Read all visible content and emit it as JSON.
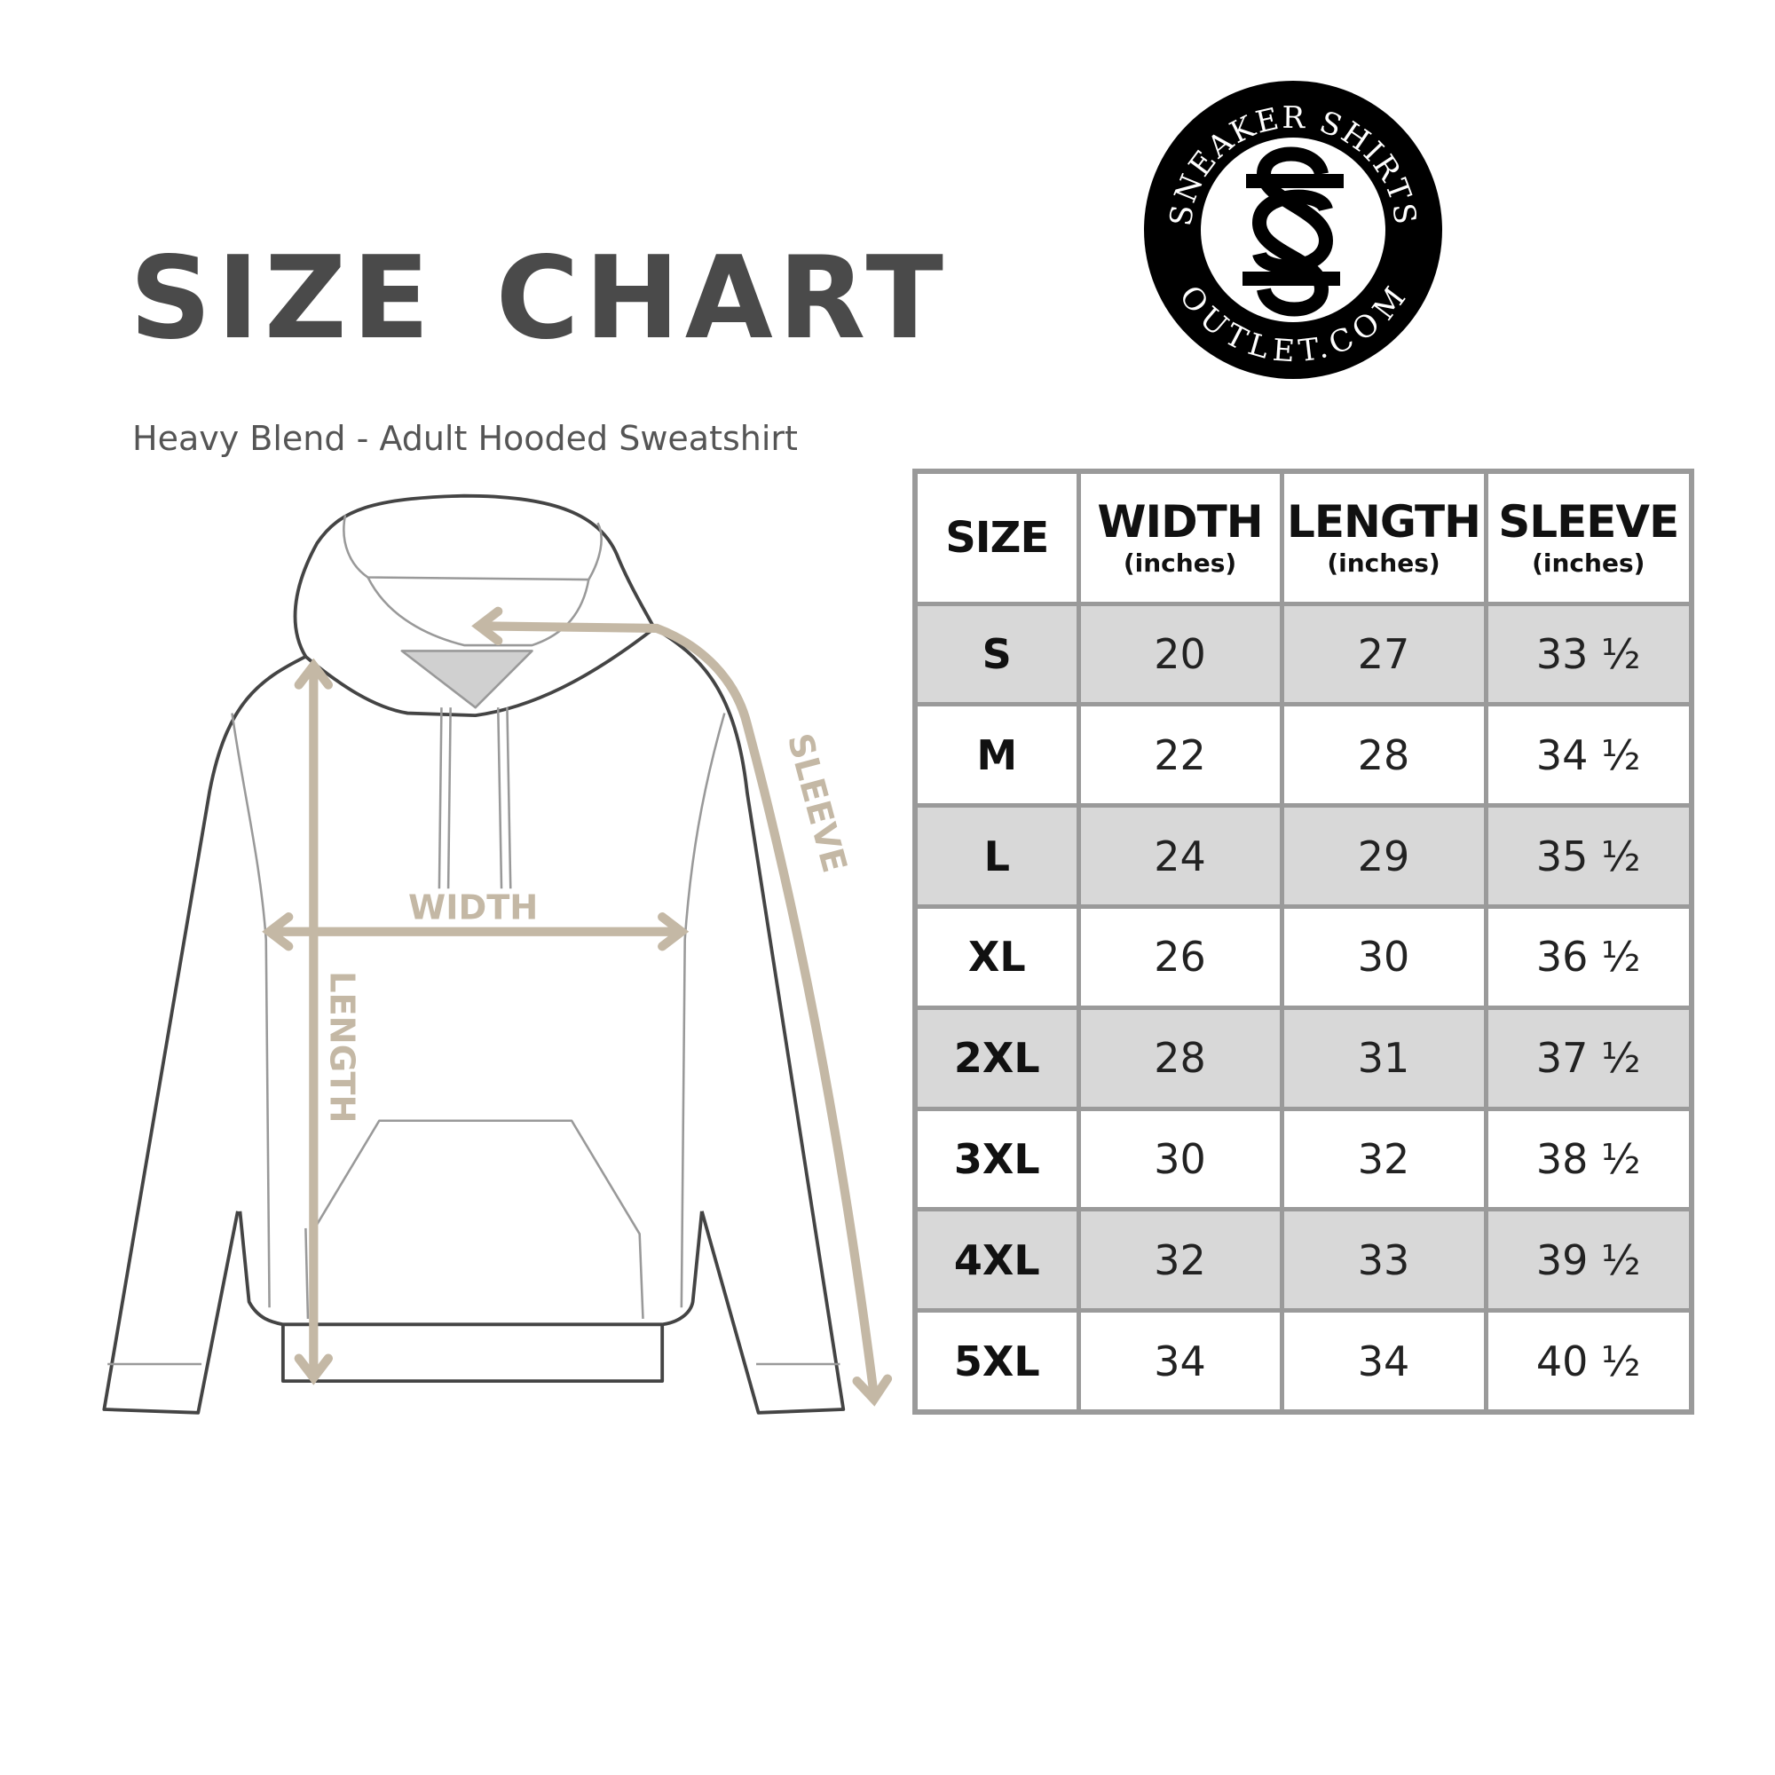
{
  "title": "SIZE CHART",
  "subtitle": "Heavy Blend - Adult Hooded Sweatshirt",
  "logo": {
    "top_text": "SNEAKER SHIRTS",
    "bottom_text": "OUTLET.COM",
    "monogram": "SS"
  },
  "diagram": {
    "width_label": "WIDTH",
    "length_label": "LENGTH",
    "sleeve_label": "SLEEVE",
    "arrow_color": "#c4b8a5",
    "outline_color": "#444444"
  },
  "table": {
    "headers": [
      {
        "label": "SIZE",
        "unit": ""
      },
      {
        "label": "WIDTH",
        "unit": "(inches)"
      },
      {
        "label": "LENGTH",
        "unit": "(inches)"
      },
      {
        "label": "SLEEVE",
        "unit": "(inches)"
      }
    ],
    "rows": [
      [
        "S",
        "20",
        "27",
        "33 ½"
      ],
      [
        "M",
        "22",
        "28",
        "34 ½"
      ],
      [
        "L",
        "24",
        "29",
        "35 ½"
      ],
      [
        "XL",
        "26",
        "30",
        "36 ½"
      ],
      [
        "2XL",
        "28",
        "31",
        "37 ½"
      ],
      [
        "3XL",
        "30",
        "32",
        "38 ½"
      ],
      [
        "4XL",
        "32",
        "33",
        "39 ½"
      ],
      [
        "5XL",
        "34",
        "34",
        "40 ½"
      ]
    ],
    "shade_color": "#d8d8d8",
    "border_color": "#9a9a9a"
  }
}
